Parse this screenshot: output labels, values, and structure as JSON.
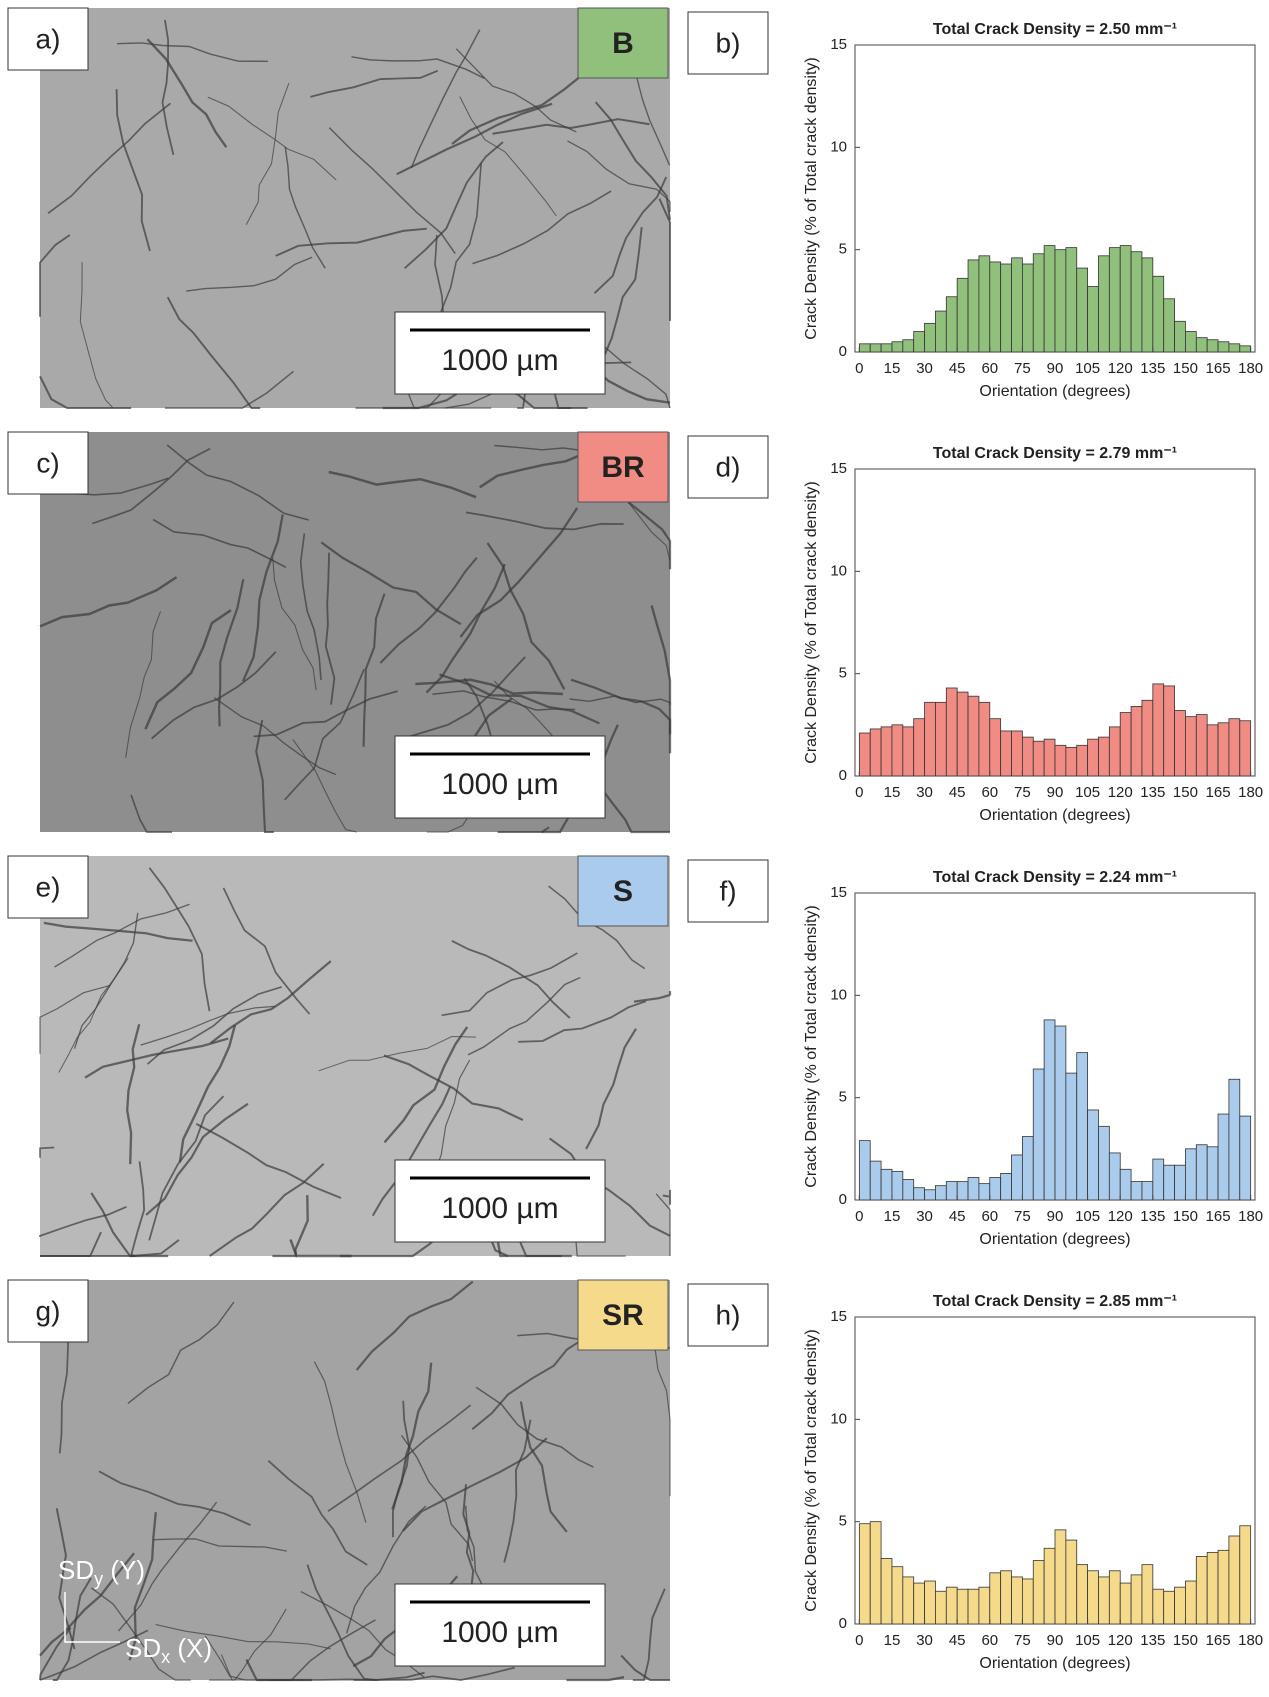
{
  "panels": [
    {
      "label": "a)",
      "tag": "B",
      "scale_bar": "1000 µm"
    },
    {
      "label": "c)",
      "tag": "BR",
      "scale_bar": "1000 µm"
    },
    {
      "label": "e)",
      "tag": "S",
      "scale_bar": "1000 µm"
    },
    {
      "label": "g)",
      "tag": "SR",
      "scale_bar": "1000 µm",
      "coord_labels": [
        {
          "text": "SD",
          "sub": "y",
          "suffix": " (Y)"
        },
        {
          "text": "SD",
          "sub": "x",
          "suffix": " (X)"
        }
      ]
    }
  ],
  "chart_data": [
    {
      "type": "histogram",
      "panel_label": "b)",
      "title": "Total Crack Density = 2.50 mm⁻¹",
      "x_label": "Orientation (degrees)",
      "y_label": "Crack Density (% of Total crack density)",
      "color": "#90c07c",
      "bins": [
        0,
        5,
        10,
        15,
        20,
        25,
        30,
        35,
        40,
        45,
        50,
        55,
        60,
        65,
        70,
        75,
        80,
        85,
        90,
        95,
        100,
        105,
        110,
        115,
        120,
        125,
        130,
        135,
        140,
        145,
        150,
        155,
        160,
        165,
        170,
        175,
        180
      ],
      "values": [
        0.4,
        0.4,
        0.4,
        0.5,
        0.6,
        1.0,
        1.4,
        2.0,
        2.7,
        3.6,
        4.5,
        4.7,
        4.4,
        4.3,
        4.6,
        4.3,
        4.8,
        5.2,
        5.0,
        5.1,
        4.1,
        3.2,
        4.7,
        5.1,
        5.2,
        4.9,
        4.6,
        3.7,
        2.6,
        1.5,
        1.0,
        0.7,
        0.6,
        0.5,
        0.4,
        0.3
      ],
      "xlim": [
        -2,
        182
      ],
      "ylim": [
        0,
        15
      ],
      "xticks": [
        0,
        15,
        30,
        45,
        60,
        75,
        90,
        105,
        120,
        135,
        150,
        165,
        180
      ],
      "yticks": [
        0,
        5,
        10,
        15
      ]
    },
    {
      "type": "histogram",
      "panel_label": "d)",
      "title": "Total Crack Density = 2.79 mm⁻¹",
      "x_label": "Orientation (degrees)",
      "y_label": "Crack Density (% of Total crack density)",
      "color": "#f08c84",
      "bins": [
        0,
        5,
        10,
        15,
        20,
        25,
        30,
        35,
        40,
        45,
        50,
        55,
        60,
        65,
        70,
        75,
        80,
        85,
        90,
        95,
        100,
        105,
        110,
        115,
        120,
        125,
        130,
        135,
        140,
        145,
        150,
        155,
        160,
        165,
        170,
        175,
        180
      ],
      "values": [
        2.1,
        2.3,
        2.4,
        2.5,
        2.4,
        2.8,
        3.6,
        3.6,
        4.3,
        4.1,
        3.9,
        3.6,
        2.8,
        2.2,
        2.2,
        1.9,
        1.7,
        1.8,
        1.5,
        1.4,
        1.5,
        1.8,
        1.9,
        2.4,
        3.1,
        3.4,
        3.7,
        4.5,
        4.4,
        3.2,
        2.9,
        3.0,
        2.5,
        2.6,
        2.8,
        2.7
      ],
      "xlim": [
        -2,
        182
      ],
      "ylim": [
        0,
        15
      ],
      "xticks": [
        0,
        15,
        30,
        45,
        60,
        75,
        90,
        105,
        120,
        135,
        150,
        165,
        180
      ],
      "yticks": [
        0,
        5,
        10,
        15
      ]
    },
    {
      "type": "histogram",
      "panel_label": "f)",
      "title": "Total Crack Density = 2.24 mm⁻¹",
      "x_label": "Orientation (degrees)",
      "y_label": "Crack Density (% of Total crack density)",
      "color": "#aacbeb",
      "bins": [
        0,
        5,
        10,
        15,
        20,
        25,
        30,
        35,
        40,
        45,
        50,
        55,
        60,
        65,
        70,
        75,
        80,
        85,
        90,
        95,
        100,
        105,
        110,
        115,
        120,
        125,
        130,
        135,
        140,
        145,
        150,
        155,
        160,
        165,
        170,
        175,
        180
      ],
      "values": [
        2.9,
        1.9,
        1.5,
        1.4,
        1.0,
        0.6,
        0.5,
        0.7,
        0.9,
        0.9,
        1.1,
        0.8,
        1.1,
        1.3,
        2.2,
        3.1,
        6.4,
        8.8,
        8.5,
        6.2,
        7.2,
        4.4,
        3.6,
        2.3,
        1.5,
        0.9,
        0.9,
        2.0,
        1.7,
        1.7,
        2.5,
        2.7,
        2.6,
        4.2,
        5.9,
        4.1
      ],
      "xlim": [
        -2,
        182
      ],
      "ylim": [
        0,
        15
      ],
      "xticks": [
        0,
        15,
        30,
        45,
        60,
        75,
        90,
        105,
        120,
        135,
        150,
        165,
        180
      ],
      "yticks": [
        0,
        5,
        10,
        15
      ]
    },
    {
      "type": "histogram",
      "panel_label": "h)",
      "title": "Total Crack Density = 2.85 mm⁻¹",
      "x_label": "Orientation (degrees)",
      "y_label": "Crack Density (% of Total crack density)",
      "color": "#f6da8c",
      "bins": [
        0,
        5,
        10,
        15,
        20,
        25,
        30,
        35,
        40,
        45,
        50,
        55,
        60,
        65,
        70,
        75,
        80,
        85,
        90,
        95,
        100,
        105,
        110,
        115,
        120,
        125,
        130,
        135,
        140,
        145,
        150,
        155,
        160,
        165,
        170,
        175,
        180
      ],
      "values": [
        4.9,
        5.0,
        3.2,
        2.8,
        2.3,
        2.0,
        2.1,
        1.6,
        1.8,
        1.7,
        1.7,
        1.8,
        2.5,
        2.6,
        2.3,
        2.2,
        3.1,
        3.7,
        4.6,
        4.1,
        2.9,
        2.6,
        2.3,
        2.6,
        2.0,
        2.4,
        2.9,
        1.7,
        1.6,
        1.8,
        2.1,
        3.3,
        3.5,
        3.6,
        4.3,
        4.8
      ],
      "xlim": [
        -2,
        182
      ],
      "ylim": [
        0,
        15
      ],
      "xticks": [
        0,
        15,
        30,
        45,
        60,
        75,
        90,
        105,
        120,
        135,
        150,
        165,
        180
      ],
      "yticks": [
        0,
        5,
        10,
        15
      ]
    }
  ]
}
